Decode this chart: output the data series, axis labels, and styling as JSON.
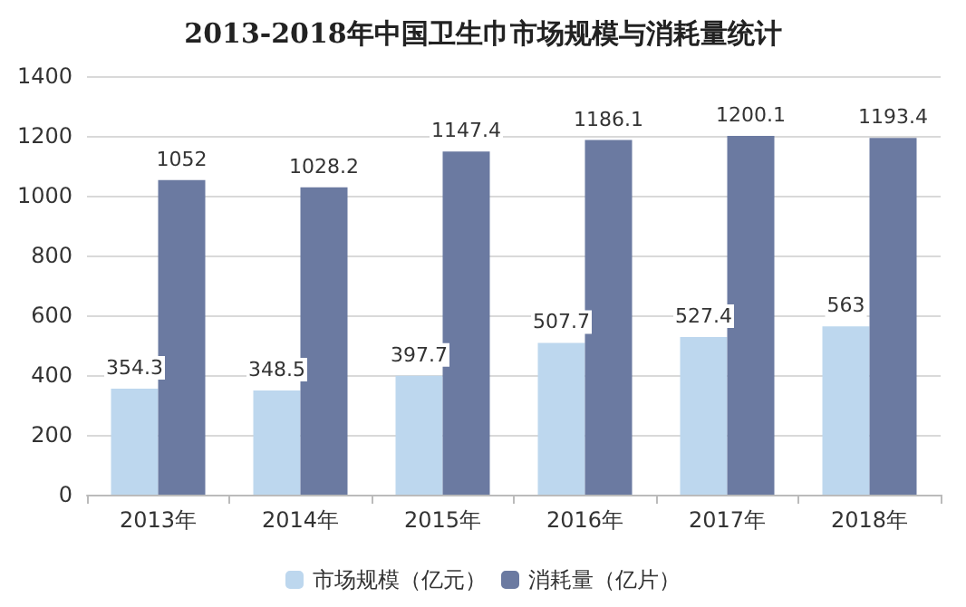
{
  "chart_data": {
    "type": "bar",
    "title": "2013-2018年中国卫生巾市场规模与消耗量统计",
    "categories": [
      "2013年",
      "2014年",
      "2015年",
      "2016年",
      "2017年",
      "2018年"
    ],
    "series": [
      {
        "name": "市场规模（亿元）",
        "color": "#bdd7ee",
        "values": [
          354.3,
          348.5,
          397.7,
          507.7,
          527.4,
          563
        ]
      },
      {
        "name": "消耗量（亿片）",
        "color": "#6b7aa1",
        "values": [
          1052,
          1028.2,
          1147.4,
          1186.1,
          1200.1,
          1193.4
        ]
      }
    ],
    "ylim": [
      0,
      1400
    ],
    "yticks": [
      0,
      200,
      400,
      600,
      800,
      1000,
      1200,
      1400
    ],
    "grid": "y",
    "legend": "bottom",
    "data_labels": true
  }
}
